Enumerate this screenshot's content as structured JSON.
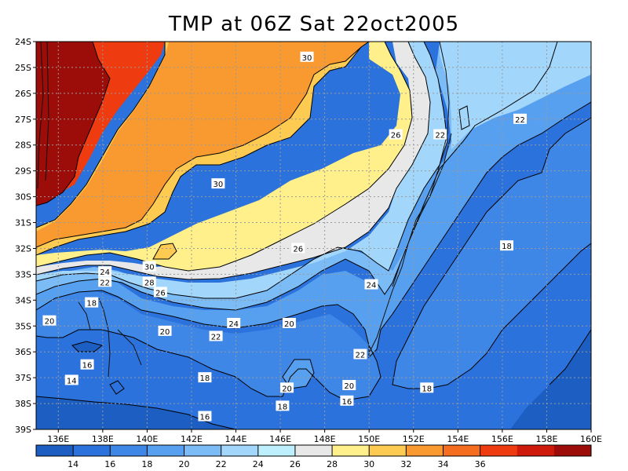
{
  "title": "TMP at 06Z Sat 22oct2005",
  "map": {
    "lon_range": [
      135,
      160
    ],
    "lat_range": [
      -39,
      -24
    ],
    "lon_ticks": [
      "136E",
      "138E",
      "140E",
      "142E",
      "144E",
      "146E",
      "148E",
      "150E",
      "152E",
      "154E",
      "156E",
      "158E",
      "160E"
    ],
    "lat_ticks": [
      "24S",
      "25S",
      "26S",
      "27S",
      "28S",
      "29S",
      "30S",
      "31S",
      "32S",
      "33S",
      "34S",
      "35S",
      "36S",
      "37S",
      "38S",
      "39S"
    ],
    "contour_labels": [
      {
        "text": "30",
        "lon": 147.2,
        "lat": -24.6
      },
      {
        "text": "22",
        "lon": 156.8,
        "lat": -27.0
      },
      {
        "text": "26",
        "lon": 151.2,
        "lat": -27.6
      },
      {
        "text": "22",
        "lon": 153.2,
        "lat": -27.6
      },
      {
        "text": "30",
        "lon": 143.2,
        "lat": -29.5
      },
      {
        "text": "26",
        "lon": 146.8,
        "lat": -32.0
      },
      {
        "text": "18",
        "lon": 156.2,
        "lat": -31.9
      },
      {
        "text": "30",
        "lon": 140.1,
        "lat": -32.7
      },
      {
        "text": "24",
        "lon": 138.1,
        "lat": -32.9
      },
      {
        "text": "22",
        "lon": 138.1,
        "lat": -33.3
      },
      {
        "text": "28",
        "lon": 140.1,
        "lat": -33.3
      },
      {
        "text": "26",
        "lon": 140.6,
        "lat": -33.7
      },
      {
        "text": "24",
        "lon": 150.1,
        "lat": -33.4
      },
      {
        "text": "18",
        "lon": 137.5,
        "lat": -34.1
      },
      {
        "text": "20",
        "lon": 135.6,
        "lat": -34.8
      },
      {
        "text": "24",
        "lon": 143.9,
        "lat": -34.9
      },
      {
        "text": "20",
        "lon": 146.4,
        "lat": -34.9
      },
      {
        "text": "20",
        "lon": 140.8,
        "lat": -35.2
      },
      {
        "text": "22",
        "lon": 143.1,
        "lat": -35.4
      },
      {
        "text": "22",
        "lon": 149.6,
        "lat": -36.1
      },
      {
        "text": "16",
        "lon": 137.3,
        "lat": -36.5
      },
      {
        "text": "14",
        "lon": 136.6,
        "lat": -37.1
      },
      {
        "text": "18",
        "lon": 142.6,
        "lat": -37.0
      },
      {
        "text": "20",
        "lon": 146.3,
        "lat": -37.4
      },
      {
        "text": "20",
        "lon": 149.1,
        "lat": -37.3
      },
      {
        "text": "18",
        "lon": 152.6,
        "lat": -37.4
      },
      {
        "text": "16",
        "lon": 149.0,
        "lat": -37.9
      },
      {
        "text": "18",
        "lon": 146.1,
        "lat": -38.1
      },
      {
        "text": "16",
        "lon": 142.6,
        "lat": -38.5
      }
    ]
  },
  "colorbar": {
    "labels": [
      "14",
      "16",
      "18",
      "20",
      "22",
      "24",
      "26",
      "28",
      "30",
      "32",
      "34",
      "36"
    ],
    "colors": [
      "#1d5ec2",
      "#2c72dc",
      "#3f87e6",
      "#57a0ef",
      "#7bbbf6",
      "#a2d6fb",
      "#bdeffd",
      "#e8e8e8",
      "#fff08c",
      "#fdca52",
      "#f89a30",
      "#f56d1e",
      "#ee3b10",
      "#ce1a0a",
      "#9c0c08"
    ]
  }
}
